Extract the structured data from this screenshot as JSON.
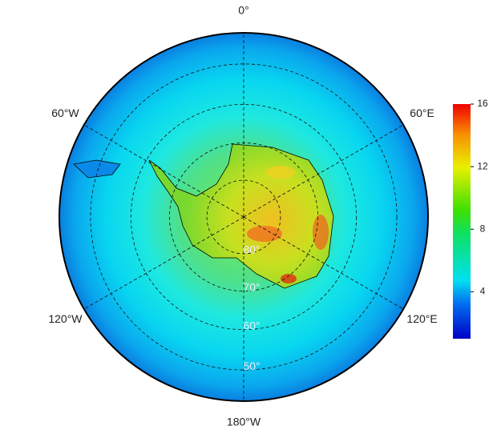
{
  "map": {
    "longitude_labels": [
      {
        "value": 0,
        "label": "0°"
      },
      {
        "value": -60,
        "label": "60°W"
      },
      {
        "value": 60,
        "label": "60°E"
      },
      {
        "value": -120,
        "label": "120°W"
      },
      {
        "value": 120,
        "label": "120°E"
      },
      {
        "value": 180,
        "label": "180°W"
      }
    ],
    "latitude_labels": [
      {
        "value": 80,
        "label": "80°"
      },
      {
        "value": 70,
        "label": "70°"
      },
      {
        "value": 60,
        "label": "60°"
      },
      {
        "value": 50,
        "label": "50°"
      }
    ]
  },
  "colorbar": {
    "lim": [
      1,
      16
    ],
    "ticks": [
      4,
      8,
      12,
      16
    ]
  }
}
